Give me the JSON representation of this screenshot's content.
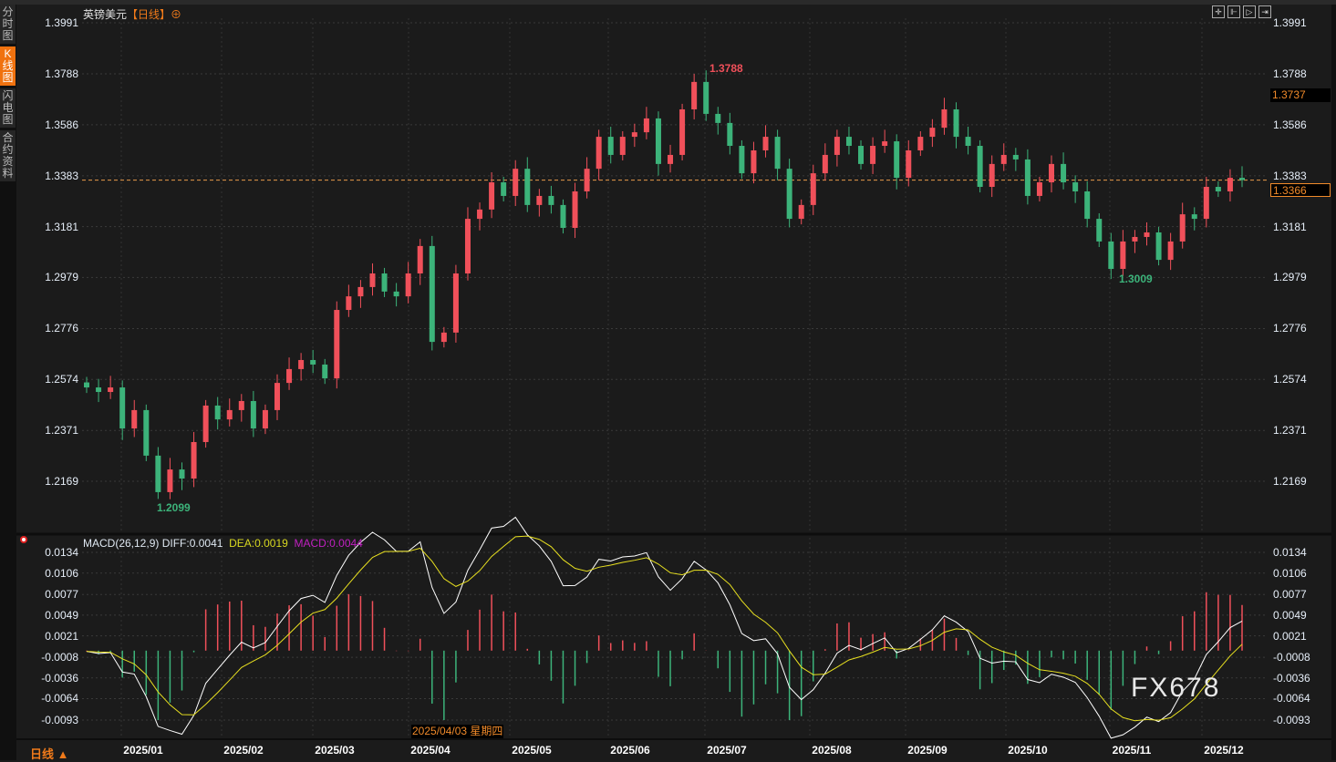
{
  "sidebar": {
    "tabs": [
      {
        "label": "分时图",
        "active": false
      },
      {
        "label": "K线图",
        "active": true
      },
      {
        "label": "闪电图",
        "active": false
      },
      {
        "label": "合约资料",
        "active": false
      }
    ]
  },
  "header": {
    "symbol": "英镑美元",
    "period": "【日线】",
    "add_icon": "⊕"
  },
  "toolbar": {
    "icons": [
      "crosshair-icon",
      "range-icon",
      "play-icon",
      "export-icon"
    ]
  },
  "price_tags": {
    "reference": "1.3737",
    "current": "1.3366"
  },
  "extremes": {
    "high": "1.3788",
    "low_1": "1.2099",
    "low_2": "1.3009"
  },
  "macd_header": {
    "params": "MACD(26,12,9)",
    "diff": "DIFF:0.0041",
    "dea": "DEA:0.0019",
    "macd": "MACD:0.0044"
  },
  "tooltip": "2025/04/03 星期四",
  "period_button": "日线 ▲",
  "watermark": "FX678",
  "colors": {
    "up": "#f0505a",
    "down": "#3cb37a",
    "diff": "#ffffff",
    "dea": "#e8e020",
    "macd_label": "#c020c0",
    "accent": "#f07a1a"
  },
  "chart_data": [
    {
      "type": "candlestick",
      "title": "英镑美元",
      "ylim": [
        1.2169,
        1.3991
      ],
      "yticks": [
        "1.3991",
        "1.3788",
        "1.3586",
        "1.3383",
        "1.3181",
        "1.2979",
        "1.2776",
        "1.2574",
        "1.2371",
        "1.2169"
      ],
      "xticks": [
        "2025/01",
        "2025/02",
        "2025/03",
        "2025/04",
        "2025/05",
        "2025/06",
        "2025/07",
        "2025/08",
        "2025/09",
        "2025/10",
        "2025/11",
        "2025/12"
      ],
      "grid": true,
      "closes": [
        1.2542,
        1.2524,
        1.2542,
        1.2379,
        1.2452,
        1.2271,
        1.2126,
        1.2216,
        1.218,
        1.2325,
        1.247,
        1.2415,
        1.2452,
        1.2488,
        1.2379,
        1.2452,
        1.256,
        1.2615,
        1.2651,
        1.2633,
        1.2578,
        1.285,
        1.2904,
        1.2941,
        1.2995,
        1.2923,
        1.2904,
        1.2995,
        1.3104,
        1.2723,
        1.276,
        1.2995,
        1.3212,
        1.3249,
        1.3357,
        1.3303,
        1.3411,
        1.3267,
        1.3303,
        1.3267,
        1.3176,
        1.3321,
        1.3411,
        1.3538,
        1.3466,
        1.3538,
        1.3556,
        1.3611,
        1.343,
        1.3466,
        1.3647,
        1.3756,
        1.3629,
        1.3593,
        1.3502,
        1.3393,
        1.3484,
        1.3538,
        1.3411,
        1.3212,
        1.3267,
        1.3393,
        1.3466,
        1.3538,
        1.3502,
        1.343,
        1.3502,
        1.352,
        1.3375,
        1.3484,
        1.3538,
        1.3574,
        1.3647,
        1.3538,
        1.3502,
        1.3339,
        1.343,
        1.3466,
        1.3448,
        1.3303,
        1.3357,
        1.343,
        1.3357,
        1.3321,
        1.3212,
        1.3122,
        1.3013,
        1.3122,
        1.314,
        1.3158,
        1.3049,
        1.3122,
        1.323,
        1.3212,
        1.3339,
        1.3321,
        1.3375,
        1.3366
      ],
      "high": 1.3788,
      "low": 1.2099,
      "last": 1.3366
    },
    {
      "type": "line+bar",
      "title": "MACD(26,12,9)",
      "ylim": [
        -0.0093,
        0.0134
      ],
      "yticks": [
        "0.0134",
        "0.0106",
        "0.0077",
        "0.0049",
        "0.0021",
        "-0.0008",
        "-0.0036",
        "-0.0064",
        "-0.0093"
      ],
      "series": [
        {
          "name": "DIFF",
          "last": 0.0041
        },
        {
          "name": "DEA",
          "last": 0.0019
        },
        {
          "name": "MACD",
          "last": 0.0044
        }
      ]
    }
  ]
}
